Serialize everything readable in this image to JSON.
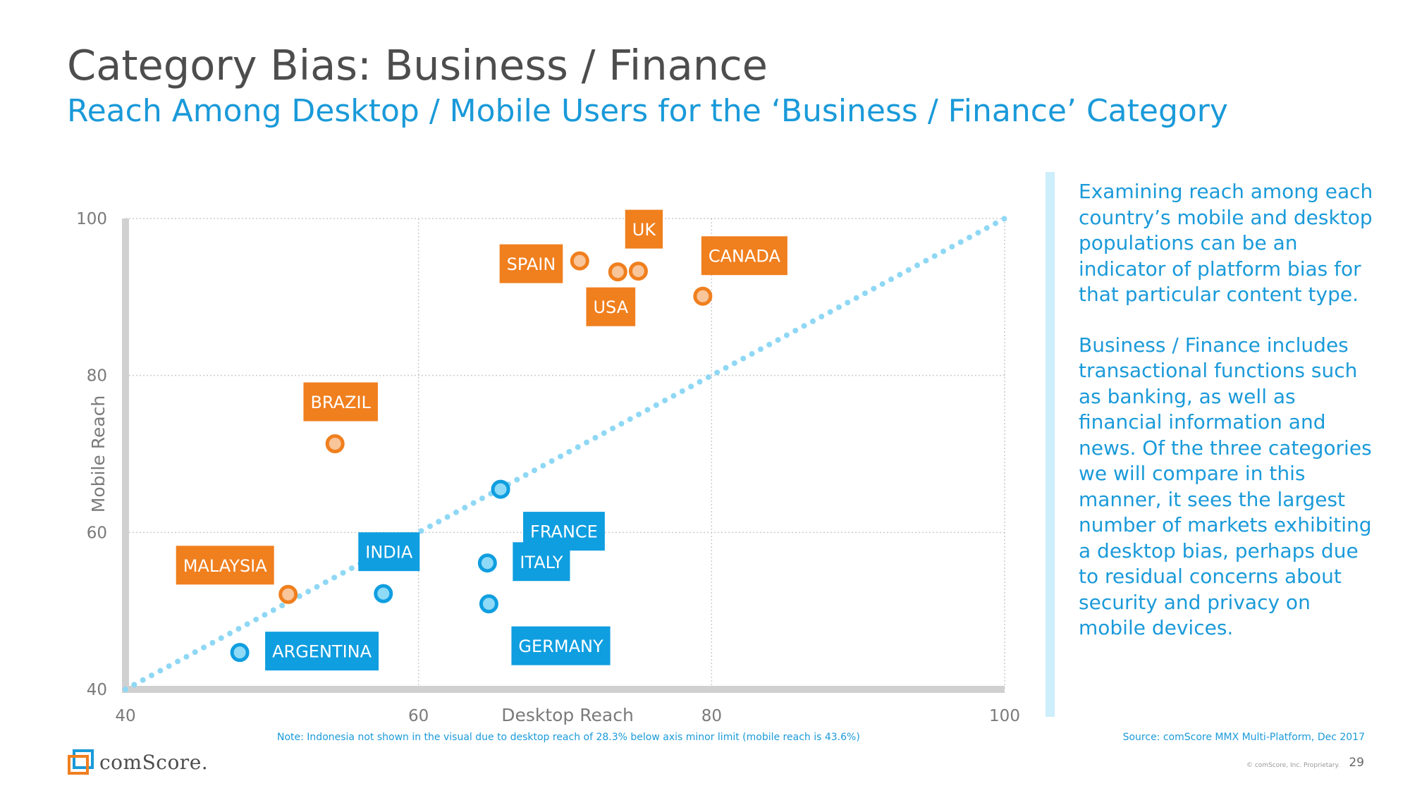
{
  "slide": {
    "title": "Category Bias: Business / Finance",
    "subtitle": "Reach Among Desktop / Mobile Users for the ‘Business / Finance’ Category",
    "sidebar_paragraphs": [
      "Examining reach among each country’s mobile and desktop populations can be an indicator of platform bias for that particular content type.",
      "Business / Finance includes transactional functions such as banking, as well as financial information and news. Of the three categories we will compare in this manner, it sees the largest number of markets exhibiting a desktop bias, perhaps due to residual concerns about security and privacy on mobile devices."
    ],
    "note": "Note: Indonesia not shown in the visual due to desktop reach of 28.3% below axis minor limit (mobile reach is 43.6%)",
    "source": "Source: comScore MMX Multi-Platform, Dec 2017",
    "logo_text": "comScore.",
    "copyright": "© comScore, Inc. Proprietary.",
    "page_number": "29"
  },
  "colors": {
    "mobile_bias": "#f07f1e",
    "mobile_bias_fill": "#f9c59a",
    "desktop_bias": "#0f9ee0",
    "desktop_bias_fill": "#8fdaf6",
    "parity_line": "#8fd8f5",
    "grid": "#cccccc",
    "axis": "#d0d0d0",
    "axis_text": "#7a7a7a"
  },
  "chart_data": {
    "type": "scatter",
    "xlabel": "Desktop Reach",
    "ylabel": "Mobile Reach",
    "xlim": [
      40,
      100
    ],
    "ylim": [
      40,
      100
    ],
    "xticks": [
      40,
      60,
      80,
      100
    ],
    "yticks": [
      40,
      60,
      80,
      100
    ],
    "grid": true,
    "reference_line": "y = x (dotted)",
    "points": [
      {
        "label": "SPAIN",
        "x": 71.0,
        "y": 94.6,
        "group": "mobile_bias",
        "label_pos": "left"
      },
      {
        "label": "UK",
        "x": 75.0,
        "y": 93.3,
        "group": "mobile_bias",
        "label_pos": "above"
      },
      {
        "label": "USA",
        "x": 73.6,
        "y": 93.2,
        "group": "mobile_bias",
        "label_pos": "below"
      },
      {
        "label": "CANADA",
        "x": 79.4,
        "y": 90.1,
        "group": "mobile_bias",
        "label_pos": "above-right"
      },
      {
        "label": "BRAZIL",
        "x": 54.3,
        "y": 71.3,
        "group": "mobile_bias",
        "label_pos": "above"
      },
      {
        "label": "MALAYSIA",
        "x": 51.1,
        "y": 52.1,
        "group": "mobile_bias",
        "label_pos": "above-left"
      },
      {
        "label": "FRANCE",
        "x": 65.6,
        "y": 65.5,
        "group": "desktop_bias",
        "label_pos": "below-right"
      },
      {
        "label": "INDIA",
        "x": 57.6,
        "y": 52.2,
        "group": "desktop_bias",
        "label_pos": "above"
      },
      {
        "label": "ITALY",
        "x": 64.7,
        "y": 56.1,
        "group": "desktop_bias",
        "label_pos": "right"
      },
      {
        "label": "GERMANY",
        "x": 64.8,
        "y": 50.9,
        "group": "desktop_bias",
        "label_pos": "below-right"
      },
      {
        "label": "ARGENTINA",
        "x": 47.8,
        "y": 44.7,
        "group": "desktop_bias",
        "label_pos": "right"
      }
    ]
  }
}
